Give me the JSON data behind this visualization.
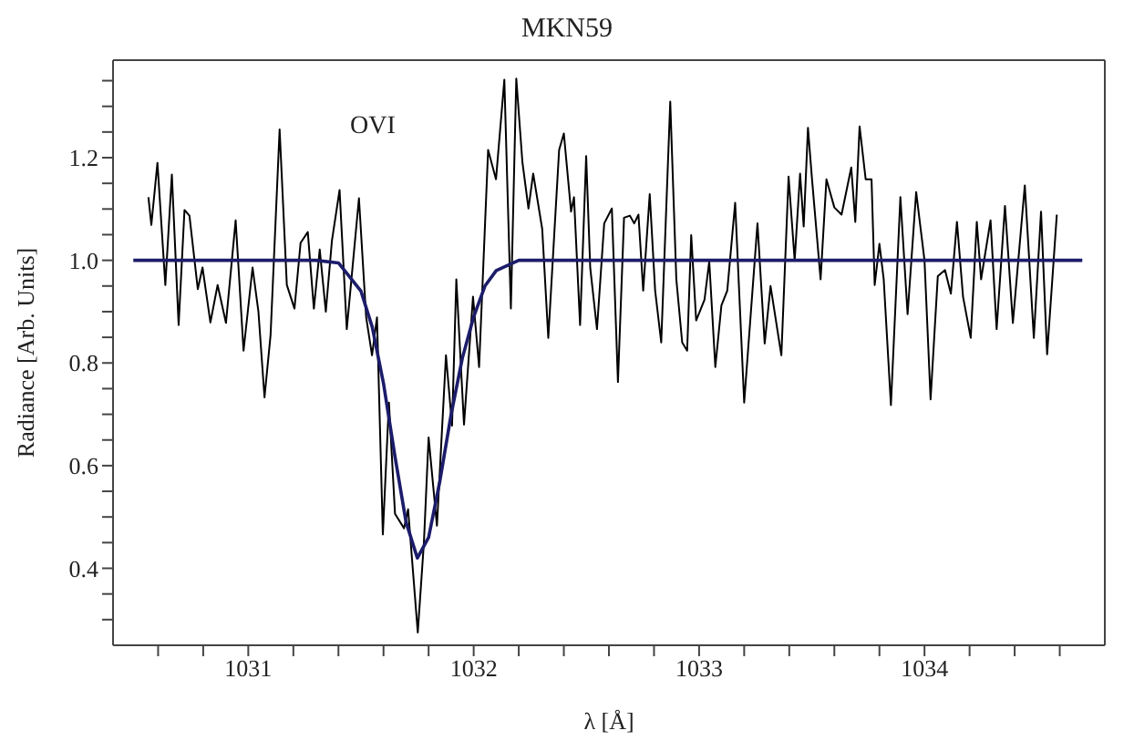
{
  "chart_data": {
    "type": "line",
    "title": "MKN59",
    "xlabel": "λ [Å]",
    "ylabel": "Radiance [Arb. Units]",
    "annotations": [
      "OVI"
    ],
    "xlim": [
      1030.4,
      1034.8
    ],
    "xticks": [
      {
        "value": 1030.6,
        "label": null
      },
      {
        "value": 1030.8,
        "label": null
      },
      1031,
      {
        "value": 1031.2,
        "label": null
      },
      {
        "value": 1031.4,
        "label": null
      },
      {
        "value": 1031.6,
        "label": null
      },
      {
        "value": 1031.8,
        "label": null
      },
      1032,
      {
        "value": 1032.2,
        "label": null
      },
      {
        "value": 1032.4,
        "label": null
      },
      {
        "value": 1032.6,
        "label": null
      },
      {
        "value": 1032.8,
        "label": null
      },
      1033,
      {
        "value": 1033.2,
        "label": null
      },
      {
        "value": 1033.4,
        "label": null
      },
      {
        "value": 1033.6,
        "label": null
      },
      {
        "value": 1033.8,
        "label": null
      },
      1034,
      {
        "value": 1034.2,
        "label": null
      },
      {
        "value": 1034.4,
        "label": null
      },
      {
        "value": 1034.6,
        "label": null
      }
    ],
    "ylim": [
      0.25,
      1.39
    ],
    "yticks": [
      {
        "value": 0.3,
        "label": null
      },
      {
        "value": 0.35,
        "label": null
      },
      0.4,
      {
        "value": 0.45,
        "label": null
      },
      {
        "value": 0.5,
        "label": null
      },
      {
        "value": 0.55,
        "label": null
      },
      0.6,
      {
        "value": 0.65,
        "label": null
      },
      {
        "value": 0.7,
        "label": null
      },
      {
        "value": 0.75,
        "label": null
      },
      0.8,
      {
        "value": 0.85,
        "label": null
      },
      {
        "value": 0.9,
        "label": null
      },
      {
        "value": 0.95,
        "label": null
      },
      {
        "value": 1,
        "label": "1.0"
      },
      {
        "value": 1.05,
        "label": null
      },
      {
        "value": 1.1,
        "label": null
      },
      {
        "value": 1.15,
        "label": null
      },
      1.2,
      {
        "value": 1.25,
        "label": null
      },
      {
        "value": 1.3,
        "label": null
      },
      {
        "value": 1.35,
        "label": null
      }
    ],
    "legend": false,
    "marker": "none",
    "line_style": "solid",
    "series": [
      {
        "color": "#000000",
        "x": [
          1030.557,
          1030.57,
          1030.597,
          1030.632,
          1030.661,
          1030.691,
          1030.717,
          1030.739,
          1030.776,
          1030.797,
          1030.832,
          1030.864,
          1030.901,
          1030.944,
          1030.979,
          1031.019,
          1031.045,
          1031.072,
          1031.099,
          1031.139,
          1031.171,
          1031.205,
          1031.232,
          1031.264,
          1031.291,
          1031.317,
          1031.344,
          1031.371,
          1031.405,
          1031.437,
          1031.491,
          1031.523,
          1031.549,
          1031.571,
          1031.597,
          1031.624,
          1031.651,
          1031.691,
          1031.709,
          1031.752,
          1031.779,
          1031.8,
          1031.837,
          1031.877,
          1031.904,
          1031.923,
          1031.957,
          1031.997,
          1032.024,
          1032.064,
          1032.099,
          1032.136,
          1032.165,
          1032.189,
          1032.216,
          1032.243,
          1032.264,
          1032.304,
          1032.331,
          1032.379,
          1032.4,
          1032.432,
          1032.445,
          1032.472,
          1032.499,
          1032.517,
          1032.547,
          1032.579,
          1032.613,
          1032.64,
          1032.667,
          1032.693,
          1032.712,
          1032.731,
          1032.752,
          1032.781,
          1032.805,
          1032.832,
          1032.872,
          1032.899,
          1032.925,
          1032.947,
          1032.965,
          1032.987,
          1033.024,
          1033.045,
          1033.072,
          1033.099,
          1033.125,
          1033.16,
          1033.2,
          1033.259,
          1033.291,
          1033.317,
          1033.365,
          1033.397,
          1033.424,
          1033.448,
          1033.464,
          1033.483,
          1033.501,
          1033.539,
          1033.565,
          1033.6,
          1033.632,
          1033.675,
          1033.693,
          1033.712,
          1033.739,
          1033.765,
          1033.779,
          1033.8,
          1033.819,
          1033.851,
          1033.893,
          1033.925,
          1033.963,
          1034.0,
          1034.027,
          1034.059,
          1034.091,
          1034.117,
          1034.144,
          1034.171,
          1034.205,
          1034.232,
          1034.251,
          1034.293,
          1034.32,
          1034.357,
          1034.392,
          1034.445,
          1034.485,
          1034.517,
          1034.544,
          1034.587
        ],
        "values": [
          1.123,
          1.069,
          1.19,
          0.952,
          1.167,
          0.874,
          1.098,
          1.087,
          0.944,
          0.986,
          0.879,
          0.952,
          0.878,
          1.078,
          0.824,
          0.986,
          0.9,
          0.733,
          0.855,
          1.255,
          0.952,
          0.906,
          1.034,
          1.055,
          0.906,
          1.021,
          0.9,
          1.038,
          1.137,
          0.866,
          1.121,
          0.889,
          0.815,
          0.889,
          0.466,
          0.723,
          0.506,
          0.478,
          0.515,
          0.275,
          0.449,
          0.655,
          0.483,
          0.815,
          0.678,
          0.963,
          0.68,
          0.929,
          0.792,
          1.215,
          1.158,
          1.352,
          0.906,
          1.354,
          1.192,
          1.101,
          1.169,
          1.061,
          0.849,
          1.215,
          1.247,
          1.095,
          1.123,
          0.874,
          1.203,
          0.986,
          0.866,
          1.072,
          1.101,
          0.763,
          1.083,
          1.087,
          1.072,
          1.089,
          0.941,
          1.129,
          0.941,
          0.84,
          1.309,
          0.963,
          0.84,
          0.824,
          1.049,
          0.883,
          0.923,
          0.998,
          0.792,
          0.912,
          0.941,
          1.112,
          0.723,
          1.072,
          0.838,
          0.95,
          0.815,
          1.163,
          1.0,
          1.169,
          1.066,
          1.258,
          1.158,
          0.963,
          1.158,
          1.103,
          1.089,
          1.181,
          1.075,
          1.261,
          1.158,
          1.158,
          0.952,
          1.032,
          0.963,
          0.718,
          1.123,
          0.895,
          1.133,
          1.0,
          0.729,
          0.969,
          0.981,
          0.935,
          1.075,
          0.929,
          0.849,
          1.075,
          0.963,
          1.078,
          0.866,
          1.106,
          0.878,
          1.146,
          0.849,
          1.095,
          0.817,
          1.089
        ]
      },
      {
        "color": "#1c1c6b",
        "x": [
          1030.49,
          1031.3,
          1031.4,
          1031.5,
          1031.55,
          1031.6,
          1031.65,
          1031.7,
          1031.75,
          1031.8,
          1031.85,
          1031.9,
          1031.95,
          1032.0,
          1032.05,
          1032.1,
          1032.2,
          1034.7
        ],
        "values": [
          1.0,
          1.0,
          0.995,
          0.94,
          0.87,
          0.76,
          0.62,
          0.49,
          0.42,
          0.46,
          0.57,
          0.7,
          0.81,
          0.89,
          0.95,
          0.98,
          1.0,
          1.0
        ]
      }
    ]
  }
}
